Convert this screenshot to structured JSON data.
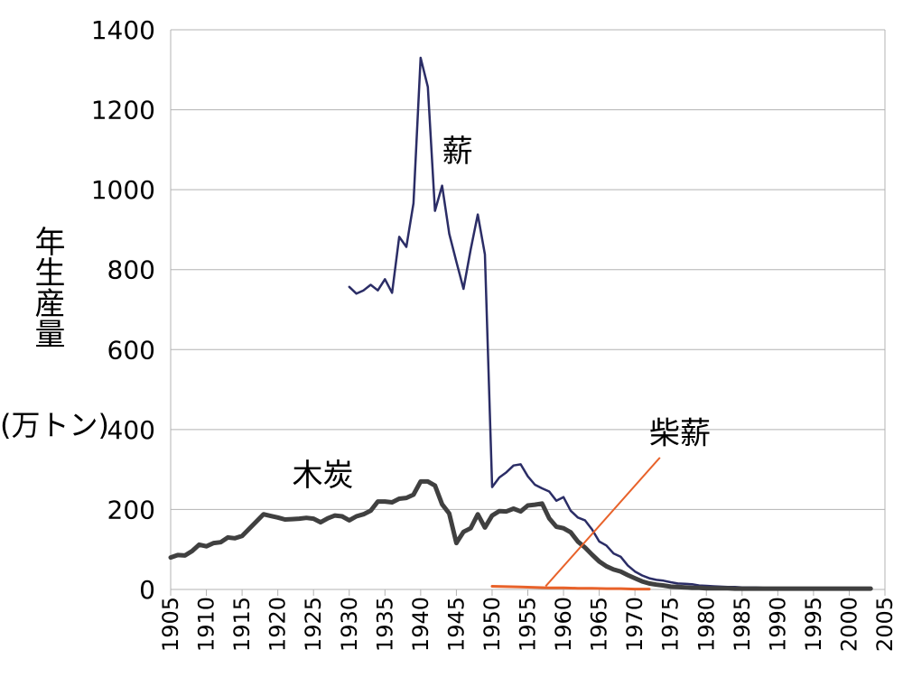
{
  "chart_data": {
    "type": "line",
    "title": "",
    "ylabel": "年生産量",
    "ylabel_unit": "(万トン)",
    "xlabel": "",
    "xlim": [
      1905,
      2005
    ],
    "ylim": [
      0,
      1400
    ],
    "x_ticks": [
      1905,
      1910,
      1915,
      1920,
      1925,
      1930,
      1935,
      1940,
      1945,
      1950,
      1955,
      1960,
      1965,
      1970,
      1975,
      1980,
      1985,
      1990,
      1995,
      2000,
      2005
    ],
    "y_ticks": [
      0,
      200,
      400,
      600,
      800,
      1000,
      1200,
      1400
    ],
    "grid": "horizontal",
    "legend": "none",
    "series": [
      {
        "name": "薪",
        "color": "#2b2d66",
        "x": [
          1930,
          1931,
          1932,
          1933,
          1934,
          1935,
          1936,
          1937,
          1938,
          1939,
          1940,
          1941,
          1942,
          1943,
          1944,
          1945,
          1946,
          1947,
          1948,
          1949,
          1950,
          1951,
          1952,
          1953,
          1954,
          1955,
          1956,
          1957,
          1958,
          1959,
          1960,
          1961,
          1962,
          1963,
          1964,
          1965,
          1966,
          1967,
          1968,
          1969,
          1970,
          1971,
          1972,
          1973,
          1974,
          1975,
          1976,
          1977,
          1978,
          1979,
          1980,
          1981,
          1982,
          1983,
          1984,
          1985,
          1986,
          1987,
          1988,
          1989,
          1990,
          1991,
          1992,
          1993,
          1994,
          1995,
          1996,
          1997,
          1998,
          1999,
          2000,
          2001,
          2002,
          2003
        ],
        "values": [
          757,
          740,
          748,
          762,
          748,
          776,
          742,
          882,
          857,
          966,
          1330,
          1257,
          947,
          1010,
          890,
          820,
          752,
          850,
          938,
          838,
          256,
          280,
          293,
          310,
          313,
          283,
          262,
          253,
          245,
          222,
          231,
          197,
          180,
          173,
          150,
          120,
          110,
          90,
          82,
          60,
          45,
          35,
          28,
          24,
          22,
          18,
          15,
          14,
          13,
          10,
          9,
          8,
          7,
          6,
          6,
          5,
          5,
          5,
          4,
          4,
          4,
          4,
          4,
          4,
          3,
          3,
          3,
          3,
          3,
          3,
          3,
          3,
          3,
          3
        ]
      },
      {
        "name": "木炭",
        "color": "#404040",
        "x": [
          1905,
          1906,
          1907,
          1908,
          1909,
          1910,
          1911,
          1912,
          1913,
          1914,
          1915,
          1916,
          1917,
          1918,
          1919,
          1920,
          1921,
          1922,
          1923,
          1924,
          1925,
          1926,
          1927,
          1928,
          1929,
          1930,
          1931,
          1932,
          1933,
          1934,
          1935,
          1936,
          1937,
          1938,
          1939,
          1940,
          1941,
          1942,
          1943,
          1944,
          1945,
          1946,
          1947,
          1948,
          1949,
          1950,
          1951,
          1952,
          1953,
          1954,
          1955,
          1956,
          1957,
          1958,
          1959,
          1960,
          1961,
          1962,
          1963,
          1964,
          1965,
          1966,
          1967,
          1968,
          1969,
          1970,
          1971,
          1972,
          1973,
          1974,
          1975,
          1976,
          1977,
          1978,
          1979,
          1980,
          1981,
          1982,
          1983,
          1984,
          1985,
          1986,
          1987,
          1988,
          1989,
          1990,
          1991,
          1992,
          1993,
          1994,
          1995,
          1996,
          1997,
          1998,
          1999,
          2000,
          2001,
          2002,
          2003
        ],
        "values": [
          80,
          86,
          85,
          96,
          112,
          108,
          116,
          118,
          130,
          128,
          134,
          152,
          170,
          188,
          184,
          180,
          175,
          176,
          177,
          179,
          177,
          168,
          178,
          185,
          183,
          173,
          183,
          188,
          197,
          220,
          220,
          218,
          227,
          229,
          237,
          270,
          270,
          260,
          213,
          190,
          116,
          144,
          153,
          188,
          155,
          185,
          196,
          195,
          202,
          195,
          210,
          212,
          215,
          178,
          157,
          153,
          143,
          120,
          105,
          87,
          70,
          58,
          50,
          45,
          36,
          28,
          20,
          15,
          12,
          10,
          7,
          6,
          5,
          4,
          4,
          3,
          3,
          3,
          3,
          2,
          2,
          2,
          2,
          2,
          2,
          2,
          2,
          2,
          2,
          2,
          2,
          2,
          2,
          2,
          2,
          2,
          2,
          2,
          2
        ]
      },
      {
        "name": "柴薪",
        "color": "#e8622a",
        "x": [
          1950,
          1952,
          1954,
          1956,
          1958,
          1960,
          1962,
          1964,
          1966,
          1968,
          1970,
          1972
        ],
        "values": [
          8,
          7,
          6,
          5,
          4,
          4,
          3,
          3,
          2,
          2,
          1,
          1
        ]
      }
    ],
    "annotations": [
      {
        "text": "薪",
        "series": "薪"
      },
      {
        "text": "木炭",
        "series": "木炭"
      },
      {
        "text": "柴薪",
        "series": "柴薪"
      }
    ]
  }
}
